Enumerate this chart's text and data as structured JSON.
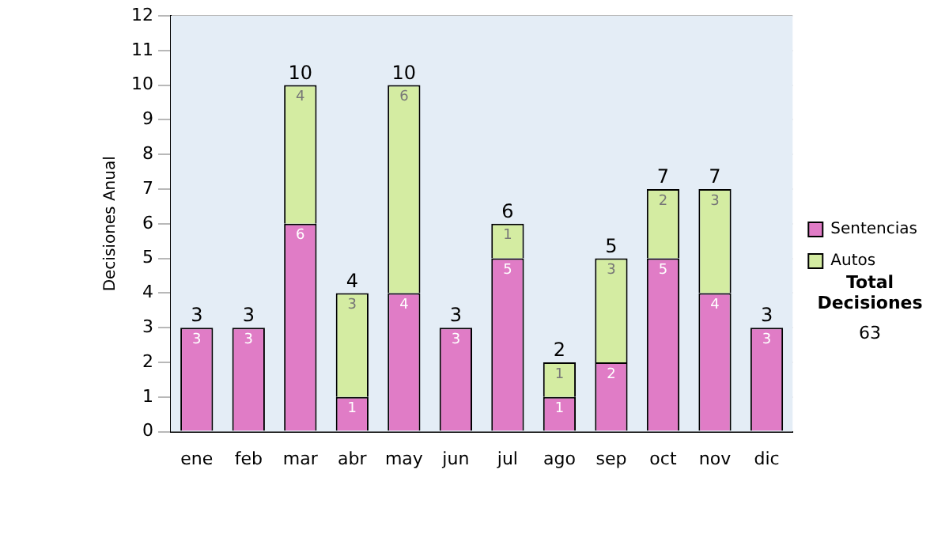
{
  "chart_data": {
    "type": "bar",
    "ylabel": "Decisiones Anual",
    "stacked": true,
    "categories": [
      "ene",
      "feb",
      "mar",
      "abr",
      "may",
      "jun",
      "jul",
      "ago",
      "sep",
      "oct",
      "nov",
      "dic"
    ],
    "series": [
      {
        "name": "Sentencias",
        "color": "#e07cc6",
        "values": [
          3,
          3,
          6,
          1,
          4,
          3,
          5,
          1,
          2,
          5,
          4,
          3
        ]
      },
      {
        "name": "Autos",
        "color": "#d4eca2",
        "values": [
          null,
          null,
          4,
          3,
          6,
          null,
          1,
          1,
          3,
          2,
          3,
          null
        ]
      }
    ],
    "totals": [
      "3",
      "3",
      "10",
      "4",
      "10",
      "3",
      "6",
      "2",
      "5",
      "7",
      "7",
      "3"
    ],
    "data_labels": true,
    "ylim": [
      0,
      12
    ],
    "yticks": [
      0,
      1,
      2,
      3,
      4,
      5,
      6,
      7,
      8,
      9,
      10,
      11,
      12
    ],
    "grid": "y",
    "legend": "right",
    "annotations": [
      "Total Decisiones",
      "63"
    ]
  }
}
